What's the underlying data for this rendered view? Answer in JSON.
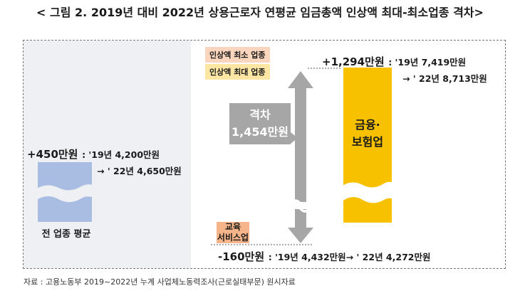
{
  "title": "< 그림 2. 2019년 대비 2022년 상용근로자 연평균 임금총액 인상액 최대-최소업종 격차>",
  "left": {
    "increase": "+450만원",
    "from": ": '19년 4,200만원",
    "to": "→ ' 22년 4,650만원",
    "label": "전 업종 평균"
  },
  "legend": {
    "min": "인상액 최소 업종",
    "max": "인상액 최대 업종"
  },
  "gap": {
    "line1": "격차",
    "line2": "1,454만원"
  },
  "finance": {
    "increase": "+1,294만원",
    "from": ": '19년 7,419만원",
    "to": "→ ' 22년 8,713만원",
    "label_line1": "금융·",
    "label_line2": "보험업"
  },
  "education": {
    "label_line1": "교육",
    "label_line2": "서비스업",
    "change": "-160만원",
    "detail": ": '19년 4,432만원→ ' 22년 4,272만원"
  },
  "source": "자료 : 고용노동부 2019~2022년 누계 사업체노동력조사(근로실태부문) 원시자료",
  "colors": {
    "average_bar": "#a9bde3",
    "max_bar": "#f7c100",
    "min_bar": "#f5b48a",
    "arrow": "#a6a6a6"
  },
  "chart_data": {
    "type": "bar",
    "title": "2019년 대비 2022년 상용근로자 연평균 임금총액 인상액 최대-최소업종 격차",
    "categories": [
      "전 업종 평균",
      "교육 서비스업",
      "금융·보험업"
    ],
    "series": [
      {
        "name": "2019년 (만원)",
        "values": [
          4200,
          4432,
          7419
        ]
      },
      {
        "name": "2022년 (만원)",
        "values": [
          4650,
          4272,
          8713
        ]
      },
      {
        "name": "인상액 (만원)",
        "values": [
          450,
          -160,
          1294
        ]
      }
    ],
    "annotations": {
      "gap_max_min": 1454
    },
    "unit": "만원"
  }
}
